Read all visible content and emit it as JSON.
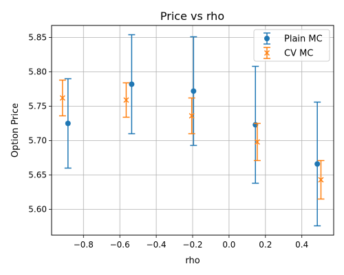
{
  "chart_data": {
    "type": "scatter",
    "title": "Price vs rho",
    "xlabel": "rho",
    "ylabel": "Option Price",
    "xlim": [
      -0.975,
      0.575
    ],
    "ylim": [
      5.5625,
      5.8675
    ],
    "xticks": [
      -0.8,
      -0.6,
      -0.4,
      -0.2,
      0.0,
      0.2,
      0.4
    ],
    "xtick_labels": [
      "−0.8",
      "−0.6",
      "−0.4",
      "−0.2",
      "0.0",
      "0.2",
      "0.4"
    ],
    "yticks": [
      5.6,
      5.65,
      5.7,
      5.75,
      5.8,
      5.85
    ],
    "ytick_labels": [
      "5.60",
      "5.65",
      "5.70",
      "5.75",
      "5.80",
      "5.85"
    ],
    "grid": true,
    "legend_position": "top-right",
    "series": [
      {
        "name": "Plain MC",
        "marker": "circle",
        "color": "#1f77b4",
        "x": [
          -0.885,
          -0.535,
          -0.195,
          0.145,
          0.485
        ],
        "y": [
          5.725,
          5.782,
          5.772,
          5.723,
          5.666
        ],
        "yerr": [
          0.065,
          0.072,
          0.079,
          0.085,
          0.09
        ]
      },
      {
        "name": "CV MC",
        "marker": "x",
        "color": "#ff7f0e",
        "x": [
          -0.915,
          -0.565,
          -0.205,
          0.155,
          0.505
        ],
        "y": [
          5.762,
          5.759,
          5.736,
          5.698,
          5.643
        ],
        "yerr": [
          0.026,
          0.025,
          0.026,
          0.027,
          0.028
        ]
      }
    ]
  }
}
